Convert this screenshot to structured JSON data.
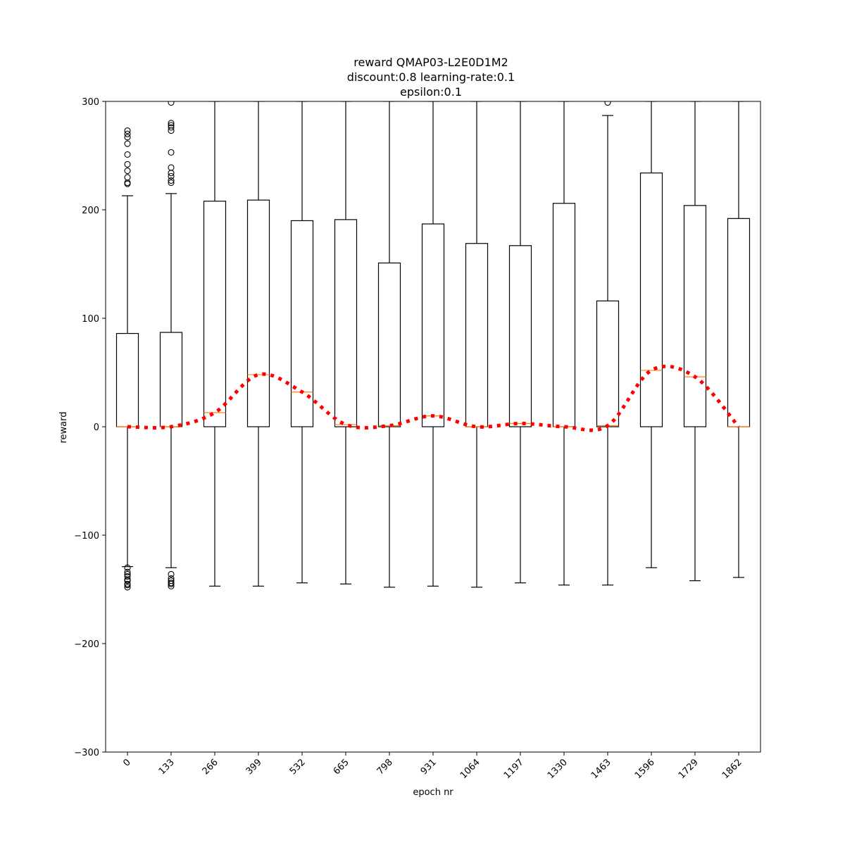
{
  "chart_data": {
    "type": "boxplot",
    "title_lines": [
      "reward QMAP03-L2E0D1M2",
      "discount:0.8 learning-rate:0.1",
      "epsilon:0.1"
    ],
    "xlabel": "epoch nr",
    "ylabel": "reward",
    "ylim": [
      -300,
      300
    ],
    "yticks": [
      -300,
      -200,
      -100,
      0,
      100,
      200,
      300
    ],
    "ytick_labels": [
      "−300",
      "−200",
      "−100",
      "0",
      "100",
      "200",
      "300"
    ],
    "categories": [
      "0",
      "133",
      "266",
      "399",
      "532",
      "665",
      "798",
      "931",
      "1064",
      "1197",
      "1330",
      "1463",
      "1596",
      "1729",
      "1862"
    ],
    "boxes": [
      {
        "whislo": -129,
        "q1": 0,
        "med": 0,
        "q3": 86,
        "whishi": 213,
        "fliers_high": [
          224,
          225,
          230,
          236,
          242,
          251,
          261,
          267,
          270,
          273
        ],
        "fliers_low": [
          -130,
          -134,
          -136,
          -138,
          -141,
          -142,
          -145,
          -146,
          -148
        ]
      },
      {
        "whislo": -130,
        "q1": 0,
        "med": 0,
        "q3": 87,
        "whishi": 215,
        "fliers_high": [
          225,
          227,
          231,
          234,
          239,
          253,
          273,
          276,
          278,
          280,
          299
        ],
        "fliers_low": [
          -136,
          -140,
          -142,
          -144,
          -145,
          -147
        ]
      },
      {
        "whislo": -147,
        "q1": 0,
        "med": 13,
        "q3": 208,
        "whishi": 300,
        "fliers_high": [],
        "fliers_low": []
      },
      {
        "whislo": -147,
        "q1": 0,
        "med": 48,
        "q3": 209,
        "whishi": 300,
        "fliers_high": [],
        "fliers_low": []
      },
      {
        "whislo": -144,
        "q1": 0,
        "med": 32,
        "q3": 190,
        "whishi": 300,
        "fliers_high": [],
        "fliers_low": []
      },
      {
        "whislo": -145,
        "q1": 0,
        "med": 2,
        "q3": 191,
        "whishi": 300,
        "fliers_high": [],
        "fliers_low": []
      },
      {
        "whislo": -148,
        "q1": 0,
        "med": 1,
        "q3": 151,
        "whishi": 300,
        "fliers_high": [],
        "fliers_low": []
      },
      {
        "whislo": -147,
        "q1": 0,
        "med": 10,
        "q3": 187,
        "whishi": 300,
        "fliers_high": [],
        "fliers_low": []
      },
      {
        "whislo": -148,
        "q1": 0,
        "med": 0,
        "q3": 169,
        "whishi": 300,
        "fliers_high": [],
        "fliers_low": []
      },
      {
        "whislo": -144,
        "q1": 0,
        "med": 3,
        "q3": 167,
        "whishi": 300,
        "fliers_high": [],
        "fliers_low": []
      },
      {
        "whislo": -146,
        "q1": 0,
        "med": 0,
        "q3": 206,
        "whishi": 300,
        "fliers_high": [],
        "fliers_low": []
      },
      {
        "whislo": -146,
        "q1": 0,
        "med": 1,
        "q3": 116,
        "whishi": 287,
        "fliers_high": [
          299
        ],
        "fliers_low": []
      },
      {
        "whislo": -130,
        "q1": 0,
        "med": 52,
        "q3": 234,
        "whishi": 300,
        "fliers_high": [],
        "fliers_low": []
      },
      {
        "whislo": -142,
        "q1": 0,
        "med": 46,
        "q3": 204,
        "whishi": 300,
        "fliers_high": [],
        "fliers_low": []
      },
      {
        "whislo": -139,
        "q1": 0,
        "med": 0,
        "q3": 192,
        "whishi": 300,
        "fliers_high": [],
        "fliers_low": []
      }
    ],
    "median_trend_line": {
      "style": "dotted",
      "color": "#ff0000",
      "values": [
        0,
        0,
        13,
        48,
        32,
        2,
        1,
        10,
        0,
        3,
        0,
        1,
        52,
        46,
        0
      ]
    },
    "colors": {
      "box_edge": "#000000",
      "median": "#ff7f0e",
      "trend": "#ff0000"
    },
    "grid": false,
    "legend": "none"
  }
}
